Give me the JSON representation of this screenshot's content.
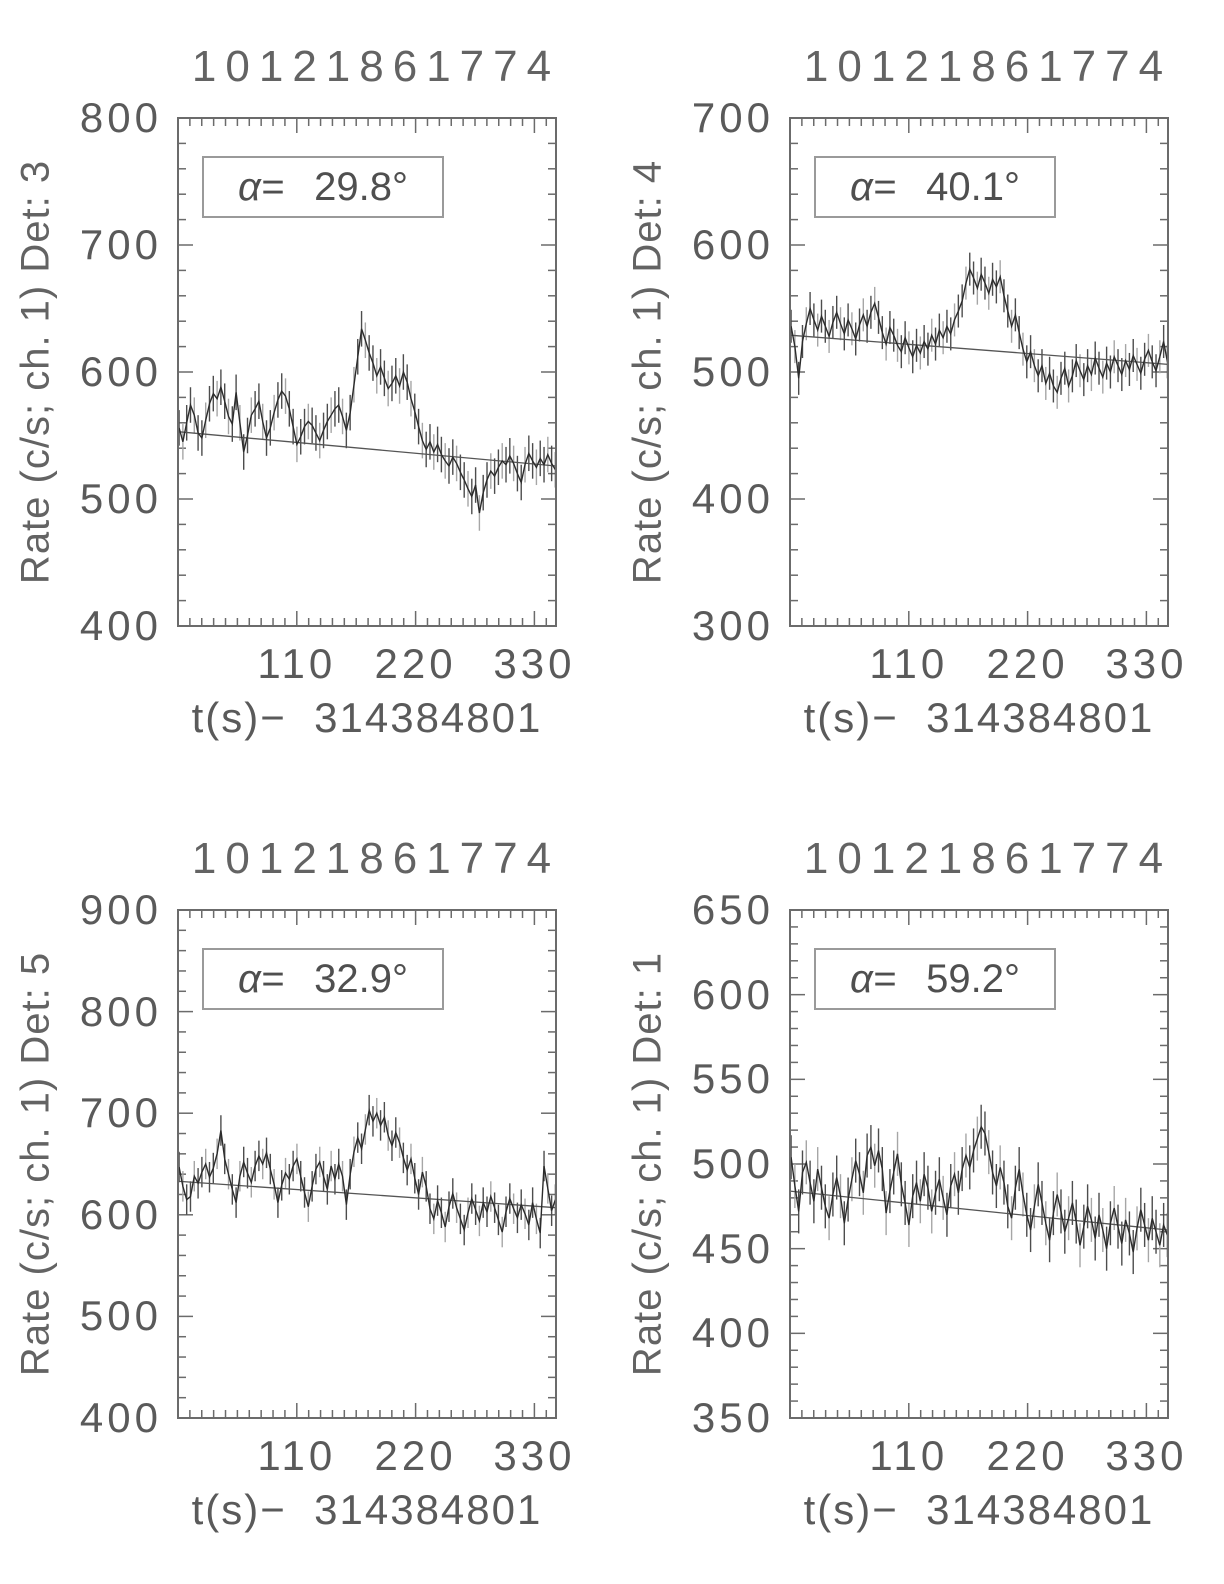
{
  "colors": {
    "frame": "#6b6b6b",
    "text": "#5a5a5a",
    "curve": "#2b2b2b",
    "error_dark": "#4d4d4d",
    "error_light": "#a6a6a6",
    "trend": "#555555",
    "box_border": "#9a9a9a"
  },
  "chart_data": [
    {
      "type": "line",
      "title": "10121861774",
      "ylabel": "Rate (c/s; ch. 1) Det: 3",
      "xlabel": "t(s)−  314384801",
      "annotation": {
        "alpha_label": "α=",
        "alpha_value": "29.8°"
      },
      "xlim": [
        0,
        350
      ],
      "ylim": [
        400,
        800
      ],
      "x_ticks": [
        110,
        220,
        330
      ],
      "y_ticks": [
        400,
        500,
        600,
        700,
        800
      ],
      "x_minor_step": 11,
      "y_minor_step": 20,
      "grid": false,
      "legend": false,
      "x0": 1.0,
      "dx": 3.52,
      "error": 14,
      "trend": {
        "y_start": 553,
        "y_end": 526
      },
      "values": [
        556,
        545,
        560,
        574,
        566,
        552,
        548,
        562,
        575,
        583,
        579,
        588,
        577,
        565,
        559,
        584,
        560,
        537,
        550,
        566,
        571,
        577,
        561,
        548,
        556,
        568,
        578,
        585,
        581,
        571,
        557,
        543,
        549,
        557,
        561,
        558,
        552,
        546,
        554,
        561,
        566,
        571,
        574,
        565,
        554,
        568,
        590,
        612,
        634,
        625,
        615,
        607,
        597,
        604,
        595,
        587,
        591,
        597,
        589,
        600,
        592,
        579,
        569,
        557,
        546,
        539,
        545,
        537,
        543,
        535,
        530,
        526,
        533,
        528,
        521,
        515,
        508,
        502,
        511,
        489,
        505,
        515,
        522,
        518,
        525,
        530,
        527,
        534,
        528,
        520,
        513,
        527,
        536,
        530,
        525,
        532,
        527,
        535,
        528,
        523
      ]
    },
    {
      "type": "line",
      "title": "10121861774",
      "ylabel": "Rate (c/s; ch. 1) Det: 4",
      "xlabel": "t(s)−  314384801",
      "annotation": {
        "alpha_label": "α=",
        "alpha_value": "40.1°"
      },
      "xlim": [
        0,
        350
      ],
      "ylim": [
        300,
        700
      ],
      "x_ticks": [
        110,
        220,
        330
      ],
      "y_ticks": [
        300,
        400,
        500,
        600,
        700
      ],
      "x_minor_step": 11,
      "y_minor_step": 20,
      "grid": false,
      "legend": false,
      "x0": 1.0,
      "dx": 3.52,
      "error": 13,
      "trend": {
        "y_start": 529,
        "y_end": 506
      },
      "values": [
        536,
        520,
        495,
        524,
        538,
        550,
        541,
        533,
        544,
        536,
        528,
        539,
        547,
        538,
        530,
        541,
        534,
        526,
        537,
        545,
        536,
        547,
        554,
        543,
        531,
        522,
        535,
        529,
        521,
        516,
        527,
        519,
        512,
        521,
        515,
        524,
        518,
        529,
        522,
        533,
        527,
        536,
        530,
        541,
        548,
        556,
        570,
        581,
        574,
        566,
        577,
        570,
        562,
        573,
        567,
        575,
        560,
        548,
        536,
        545,
        531,
        518,
        508,
        516,
        505,
        497,
        505,
        491,
        499,
        489,
        484,
        495,
        503,
        489,
        497,
        509,
        501,
        494,
        505,
        498,
        511,
        503,
        496,
        507,
        500,
        512,
        505,
        498,
        509,
        502,
        513,
        506,
        499,
        510,
        517,
        508,
        501,
        512,
        524,
        508
      ]
    },
    {
      "type": "line",
      "title": "10121861774",
      "ylabel": "Rate (c/s; ch. 1) Det: 5",
      "xlabel": "t(s)−  314384801",
      "annotation": {
        "alpha_label": "α=",
        "alpha_value": "32.9°"
      },
      "xlim": [
        0,
        350
      ],
      "ylim": [
        400,
        900
      ],
      "x_ticks": [
        110,
        220,
        330
      ],
      "y_ticks": [
        400,
        500,
        600,
        700,
        800,
        900
      ],
      "x_minor_step": 11,
      "y_minor_step": 20,
      "grid": false,
      "legend": false,
      "x0": 1.0,
      "dx": 3.52,
      "error": 15,
      "trend": {
        "y_start": 633,
        "y_end": 607
      },
      "values": [
        647,
        628,
        615,
        618,
        638,
        631,
        642,
        650,
        637,
        646,
        660,
        683,
        655,
        640,
        625,
        612,
        638,
        652,
        641,
        632,
        648,
        658,
        650,
        661,
        645,
        630,
        612,
        629,
        641,
        635,
        648,
        655,
        638,
        622,
        608,
        628,
        645,
        652,
        638,
        625,
        648,
        635,
        650,
        638,
        610,
        640,
        662,
        676,
        665,
        684,
        703,
        692,
        700,
        688,
        696,
        678,
        668,
        681,
        671,
        656,
        644,
        655,
        636,
        620,
        642,
        628,
        606,
        596,
        614,
        602,
        588,
        608,
        621,
        607,
        596,
        585,
        602,
        616,
        605,
        594,
        612,
        603,
        618,
        607,
        595,
        583,
        603,
        616,
        606,
        597,
        610,
        601,
        590,
        612,
        596,
        582,
        648,
        626,
        604,
        615
      ]
    },
    {
      "type": "line",
      "title": "10121861774",
      "ylabel": "Rate (c/s; ch. 1) Det: 1",
      "xlabel": "t(s)−  314384801",
      "annotation": {
        "alpha_label": "α=",
        "alpha_value": "59.2°"
      },
      "xlim": [
        0,
        350
      ],
      "ylim": [
        350,
        650
      ],
      "x_ticks": [
        110,
        220,
        330
      ],
      "y_ticks": [
        350,
        400,
        450,
        500,
        550,
        600,
        650
      ],
      "x_minor_step": 11,
      "y_minor_step": 10,
      "grid": false,
      "legend": false,
      "x0": 1.0,
      "dx": 3.52,
      "error": 13,
      "trend": {
        "y_start": 484,
        "y_end": 461
      },
      "values": [
        504,
        487,
        472,
        495,
        501,
        489,
        478,
        497,
        486,
        475,
        468,
        482,
        492,
        481,
        465,
        479,
        491,
        502,
        494,
        483,
        505,
        510,
        499,
        508,
        497,
        471,
        484,
        495,
        506,
        488,
        477,
        464,
        481,
        489,
        478,
        494,
        486,
        472,
        483,
        491,
        480,
        470,
        487,
        494,
        483,
        497,
        505,
        498,
        508,
        515,
        522,
        518,
        507,
        495,
        487,
        498,
        489,
        475,
        468,
        486,
        497,
        482,
        470,
        461,
        475,
        488,
        477,
        465,
        455,
        471,
        482,
        472,
        460,
        468,
        477,
        466,
        452,
        463,
        475,
        467,
        456,
        470,
        461,
        450,
        465,
        474,
        463,
        453,
        467,
        459,
        448,
        462,
        473,
        464,
        455,
        468,
        460,
        452,
        464,
        458
      ]
    }
  ]
}
